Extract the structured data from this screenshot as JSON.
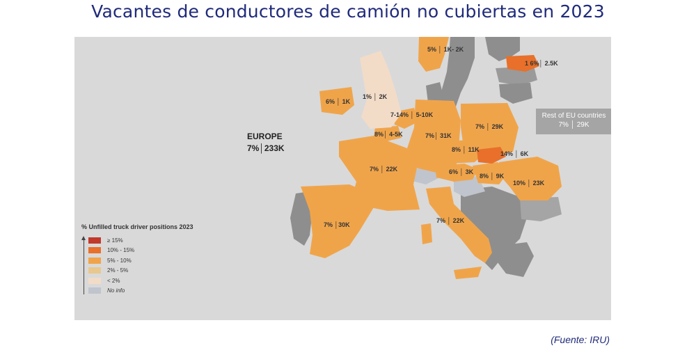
{
  "title": "Vacantes de conductores de camión no cubiertas en 2023",
  "source": "(Fuente: IRU)",
  "europe": {
    "label": "EUROPE",
    "value": "7%│233K"
  },
  "rest_of_eu": {
    "line1": "Rest of EU countries",
    "line2": "7%  │ 29K"
  },
  "colors": {
    "ge15": "#c0392b",
    "p10_15": "#e8702a",
    "p5_10": "#f0a44a",
    "p2_5": "#e8c88e",
    "lt2": "#f2dcc8",
    "no_info": "#c0c4cc",
    "grey_country": "#8e8e8e",
    "sea": "#d9d9d9"
  },
  "countries": {
    "norway": "5%  │ 1K- 2K",
    "estonia": "1 6%│ 2.5K",
    "ireland": "6%  │ 1K",
    "uk": "1%  │ 2K",
    "netherlands": "7-14% │ 5-10K",
    "belgium": "8%│ 4-5K",
    "germany": "7%│ 31K",
    "poland": "7%  │ 29K",
    "czech": "8%  │ 11K",
    "slovakia": "14%  │ 6K",
    "france": "7%  │ 22K",
    "austria": "6%  │ 3K",
    "hungary": "8%  │ 9K",
    "romania": "10%  │ 23K",
    "spain": "7%  │30K",
    "italy": "7%  │ 22K"
  },
  "legend": {
    "title": "% Unfilled truck driver positions 2023",
    "items": [
      {
        "label": "≥ 15%",
        "color": "#c0392b"
      },
      {
        "label": "10% - 15%",
        "color": "#e8702a"
      },
      {
        "label": "5% - 10%",
        "color": "#f0a44a"
      },
      {
        "label": "2% - 5%",
        "color": "#e8c88e"
      },
      {
        "label": "< 2%",
        "color": "#f2dcc8"
      },
      {
        "label": "No info",
        "color": "#c0c4cc"
      }
    ]
  }
}
